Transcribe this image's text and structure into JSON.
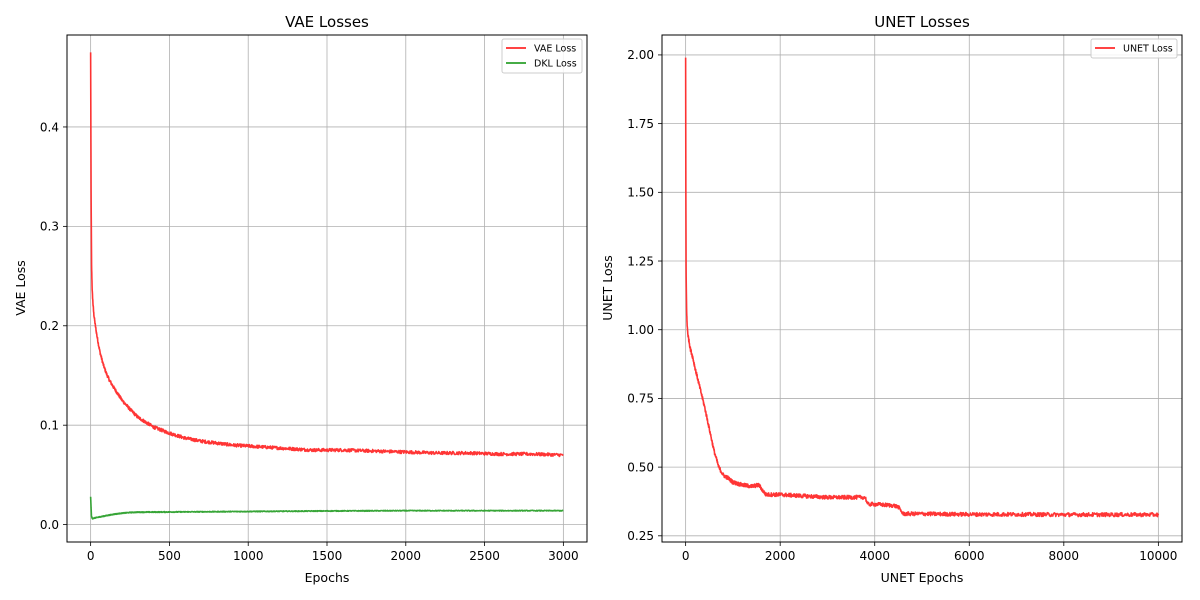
{
  "chart_data": [
    {
      "type": "line",
      "title": "VAE Losses",
      "xlabel": "Epochs",
      "ylabel": "VAE Loss",
      "xlim": [
        -150,
        3150
      ],
      "ylim": [
        -0.0175,
        0.4925
      ],
      "xticks": [
        0,
        500,
        1000,
        1500,
        2000,
        2500,
        3000
      ],
      "xtick_labels": [
        "0",
        "500",
        "1000",
        "1500",
        "2000",
        "2500",
        "3000"
      ],
      "yticks": [
        0.0,
        0.1,
        0.2,
        0.3,
        0.4
      ],
      "ytick_labels": [
        "0.0",
        "0.1",
        "0.2",
        "0.3",
        "0.4"
      ],
      "grid": true,
      "legend_position": "top-right",
      "series": [
        {
          "name": "VAE Loss",
          "color": "#ff2a2a",
          "noise": 0.0016,
          "x": [
            0,
            3,
            6,
            10,
            15,
            20,
            30,
            40,
            50,
            60,
            80,
            100,
            120,
            150,
            200,
            250,
            300,
            400,
            500,
            600,
            700,
            800,
            900,
            1000,
            1200,
            1400,
            1600,
            1800,
            2000,
            2200,
            2400,
            2600,
            2800,
            3000
          ],
          "y": [
            0.475,
            0.33,
            0.26,
            0.235,
            0.222,
            0.212,
            0.2,
            0.19,
            0.181,
            0.173,
            0.161,
            0.152,
            0.145,
            0.137,
            0.125,
            0.116,
            0.108,
            0.098,
            0.092,
            0.087,
            0.084,
            0.082,
            0.08,
            0.079,
            0.077,
            0.075,
            0.075,
            0.074,
            0.073,
            0.072,
            0.072,
            0.071,
            0.071,
            0.07
          ]
        },
        {
          "name": "DKL Loss",
          "color": "#2ca02c",
          "noise": 0.0004,
          "x": [
            0,
            2,
            5,
            8,
            12,
            20,
            50,
            100,
            150,
            200,
            250,
            300,
            500,
            1000,
            1500,
            2000,
            2500,
            3000
          ],
          "y": [
            0.028,
            0.02,
            0.009,
            0.007,
            0.006,
            0.0065,
            0.0075,
            0.009,
            0.0105,
            0.0115,
            0.0122,
            0.0125,
            0.0127,
            0.0132,
            0.0137,
            0.014,
            0.014,
            0.014
          ]
        }
      ]
    },
    {
      "type": "line",
      "title": "UNET Losses",
      "xlabel": "UNET Epochs",
      "ylabel": "UNET Loss",
      "xlim": [
        -500,
        10500
      ],
      "ylim": [
        0.2275,
        2.0725
      ],
      "xticks": [
        0,
        2000,
        4000,
        6000,
        8000,
        10000
      ],
      "xtick_labels": [
        "0",
        "2000",
        "4000",
        "6000",
        "8000",
        "10000"
      ],
      "yticks": [
        0.25,
        0.5,
        0.75,
        1.0,
        1.25,
        1.5,
        1.75,
        2.0
      ],
      "ytick_labels": [
        "0.25",
        "0.50",
        "0.75",
        "1.00",
        "1.25",
        "1.50",
        "1.75",
        "2.00"
      ],
      "grid": true,
      "legend_position": "top-right",
      "series": [
        {
          "name": "UNET Loss",
          "color": "#ff2a2a",
          "noise": 0.007,
          "x": [
            0,
            5,
            10,
            20,
            30,
            50,
            80,
            100,
            150,
            200,
            300,
            400,
            500,
            600,
            700,
            800,
            900,
            1000,
            1200,
            1400,
            1550,
            1650,
            1700,
            2000,
            2500,
            3000,
            3500,
            3800,
            3850,
            4000,
            4400,
            4500,
            4600,
            5000,
            6000,
            7000,
            8000,
            9000,
            10000
          ],
          "y": [
            1.99,
            1.5,
            1.2,
            1.08,
            1.02,
            0.98,
            0.95,
            0.93,
            0.9,
            0.86,
            0.79,
            0.72,
            0.64,
            0.56,
            0.5,
            0.47,
            0.46,
            0.445,
            0.435,
            0.43,
            0.435,
            0.41,
            0.4,
            0.4,
            0.395,
            0.39,
            0.39,
            0.39,
            0.365,
            0.365,
            0.36,
            0.355,
            0.33,
            0.33,
            0.328,
            0.328,
            0.327,
            0.327,
            0.327
          ]
        }
      ]
    }
  ]
}
